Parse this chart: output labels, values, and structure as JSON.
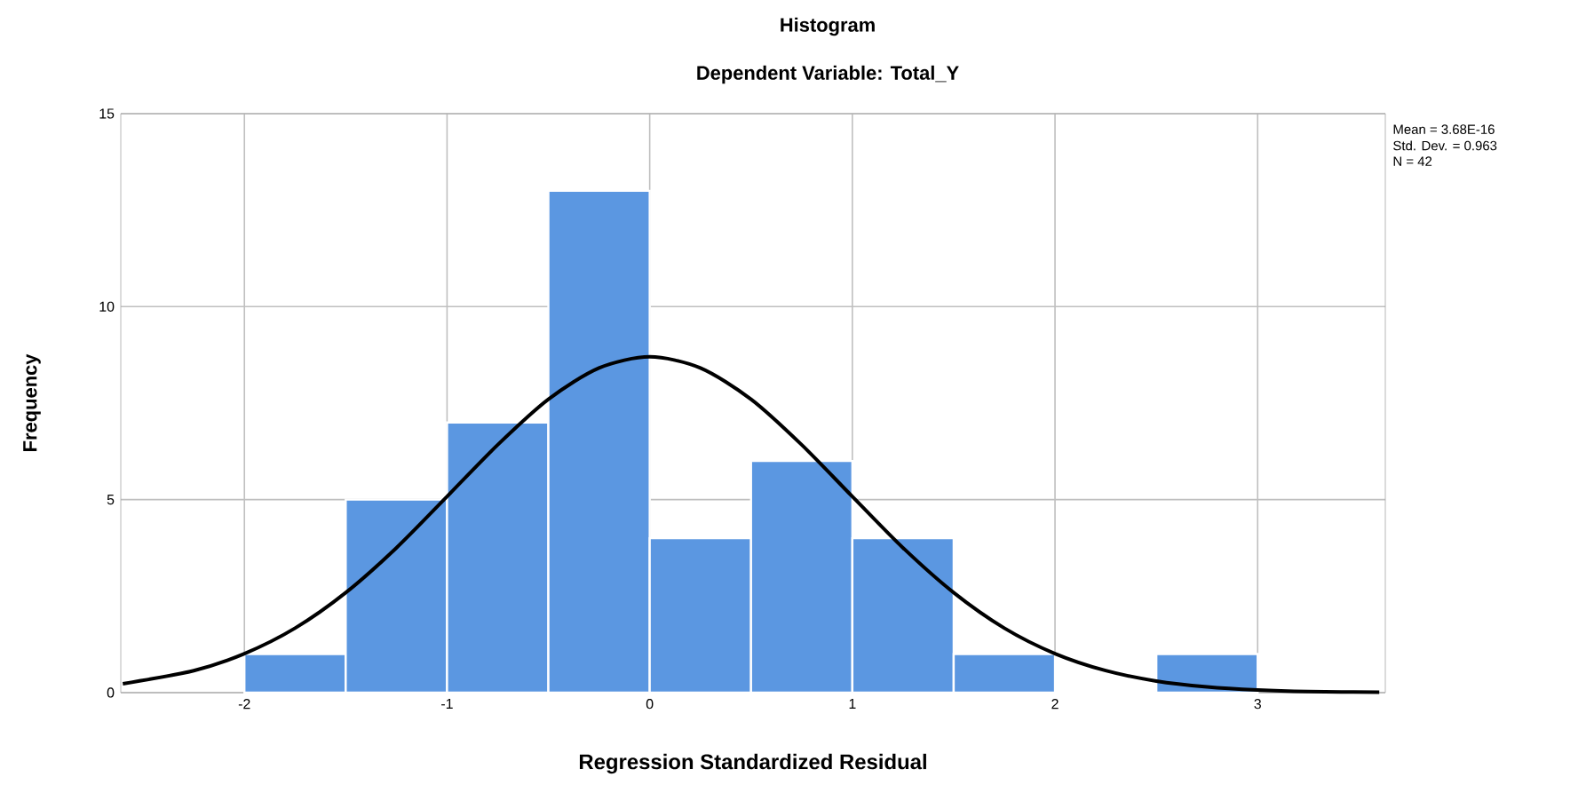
{
  "chart_data": {
    "type": "histogram",
    "title": "Histogram",
    "subtitle": "Dependent Variable: Total_Y",
    "xlabel": "Regression Standardized Residual",
    "ylabel": "Frequency",
    "annotations": [
      "Mean = 3.68E-16",
      "Std. Dev. = 0.963",
      "N = 42"
    ],
    "series": [
      {
        "color": "#5b97e1",
        "bins": [
          -2,
          -1.5,
          -1,
          -0.5,
          0,
          0.5,
          1,
          1.5,
          2,
          2.5,
          3
        ],
        "values": [
          1,
          5,
          7,
          13,
          4,
          6,
          4,
          1,
          0,
          1
        ]
      },
      {
        "type": "line",
        "color": "#000000",
        "x": [
          -2.6,
          -2.25,
          -2,
          -1.75,
          -1.5,
          -1.25,
          -1,
          -0.75,
          -0.5,
          -0.25,
          0,
          0.25,
          0.5,
          0.75,
          1,
          1.25,
          1.5,
          1.75,
          2,
          2.25,
          2.5,
          2.75,
          3,
          3.25,
          3.6
        ],
        "values": [
          0.23,
          0.57,
          1.01,
          1.67,
          2.59,
          3.75,
          5.08,
          6.42,
          7.6,
          8.41,
          8.7,
          8.41,
          7.6,
          6.42,
          5.08,
          3.75,
          2.59,
          1.67,
          1.01,
          0.57,
          0.3,
          0.15,
          0.07,
          0.03,
          0.01
        ]
      }
    ],
    "xlim": [
      -2.61,
      3.63
    ],
    "ylim": [
      0,
      15
    ],
    "xticks": [
      -2,
      -1,
      0,
      1,
      2,
      3
    ],
    "yticks": [
      0,
      5,
      10,
      15
    ],
    "grid": true
  }
}
